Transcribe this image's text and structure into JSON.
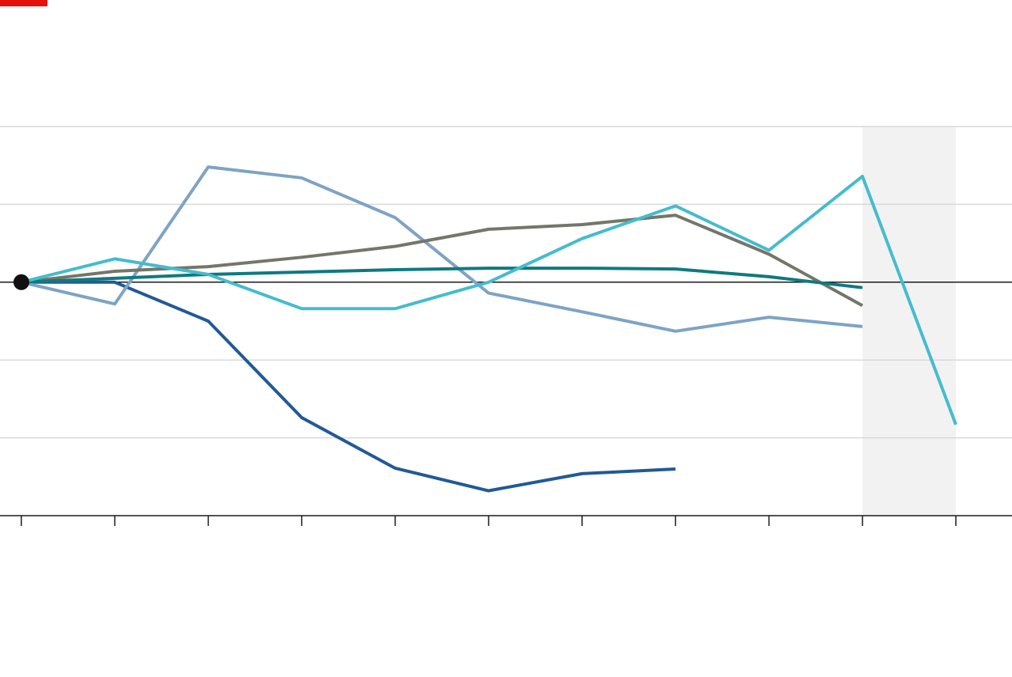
{
  "chart_data": {
    "type": "line",
    "categories": [
      null,
      null,
      null,
      null,
      null,
      null,
      null,
      null,
      null,
      null,
      null
    ],
    "series": [
      {
        "color": "#215a96",
        "values": [
          0,
          0,
          -0.5,
          -1.74,
          -2.39,
          -2.68,
          -2.46,
          -2.4,
          null,
          null,
          null
        ]
      },
      {
        "color": "#7ea3c4",
        "values": [
          0,
          -0.28,
          1.48,
          1.34,
          0.83,
          -0.14,
          -0.38,
          -0.63,
          -0.45,
          -0.57,
          null
        ]
      },
      {
        "color": "#74766a",
        "values": [
          0,
          0.14,
          0.2,
          0.32,
          0.46,
          0.68,
          0.74,
          0.86,
          0.36,
          -0.3,
          null
        ]
      },
      {
        "color": "#0e7a80",
        "values": [
          0,
          0.05,
          0.1,
          0.13,
          0.16,
          0.18,
          0.18,
          0.17,
          0.07,
          -0.07,
          null
        ]
      },
      {
        "color": "#45bccd",
        "values": [
          0,
          0.3,
          0.1,
          -0.34,
          -0.34,
          0,
          0.56,
          0.98,
          0.41,
          1.36,
          -1.83
        ]
      }
    ],
    "ylim": [
      -3,
      2
    ],
    "yticks": [
      -3,
      -2,
      -1,
      0,
      1,
      2
    ],
    "grid": true
  }
}
